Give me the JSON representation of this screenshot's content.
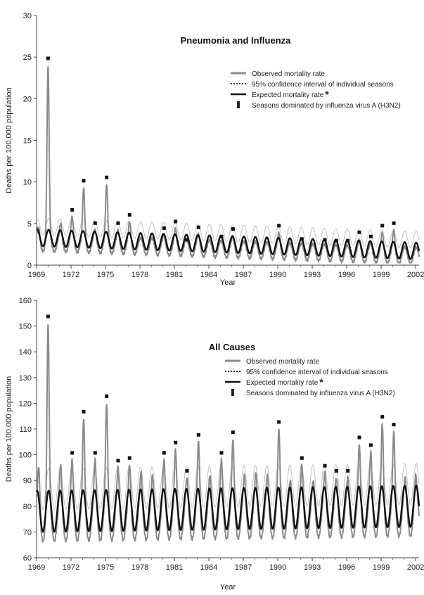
{
  "chart_data": [
    {
      "type": "line",
      "title": "Pneumonia and Influenza",
      "xlabel": "Year",
      "ylabel": "Deaths per 100,000 population",
      "ylim": [
        0,
        30
      ],
      "yticks": [
        0,
        5,
        10,
        15,
        20,
        25,
        30
      ],
      "xlim": [
        1969,
        2002.3
      ],
      "xticks": [
        1969,
        1972,
        1975,
        1978,
        1981,
        1984,
        1987,
        1990,
        1993,
        1996,
        1999,
        2002
      ],
      "grid": false,
      "legend_position": "top-right",
      "legend": [
        {
          "label": "Observed mortality rate",
          "style": "gray-line"
        },
        {
          "label": "95% confidence interval of individual seasons",
          "style": "dotted-line"
        },
        {
          "label": "Expected mortality rate",
          "style": "black-line",
          "marker": "*"
        },
        {
          "label": "Seasons dominated by influenza virus A (H3N2)",
          "style": "square-marker"
        }
      ],
      "expected": {
        "base": 3.3,
        "base_end": 1.7,
        "amplitude": 1.0
      },
      "observed_peaks": [
        {
          "year": 1969.2,
          "value": 4.5
        },
        {
          "year": 1970.0,
          "value": 24.0
        },
        {
          "year": 1971.1,
          "value": 5.0
        },
        {
          "year": 1972.1,
          "value": 5.8
        },
        {
          "year": 1973.1,
          "value": 9.3
        },
        {
          "year": 1974.1,
          "value": 4.2
        },
        {
          "year": 1975.1,
          "value": 9.7
        },
        {
          "year": 1976.1,
          "value": 4.2
        },
        {
          "year": 1977.1,
          "value": 5.2
        },
        {
          "year": 1978.1,
          "value": 2.9
        },
        {
          "year": 1979.1,
          "value": 2.6
        },
        {
          "year": 1980.1,
          "value": 3.6
        },
        {
          "year": 1981.1,
          "value": 4.4
        },
        {
          "year": 1982.1,
          "value": 2.2
        },
        {
          "year": 1983.1,
          "value": 3.7
        },
        {
          "year": 1984.1,
          "value": 2.2
        },
        {
          "year": 1985.1,
          "value": 2.6
        },
        {
          "year": 1986.1,
          "value": 3.5
        },
        {
          "year": 1987.1,
          "value": 1.9
        },
        {
          "year": 1988.1,
          "value": 1.7
        },
        {
          "year": 1989.1,
          "value": 1.9
        },
        {
          "year": 1990.1,
          "value": 3.9
        },
        {
          "year": 1991.1,
          "value": 1.8
        },
        {
          "year": 1992.1,
          "value": 2.3
        },
        {
          "year": 1993.1,
          "value": 1.8
        },
        {
          "year": 1994.1,
          "value": 2.2
        },
        {
          "year": 1995.1,
          "value": 2.1
        },
        {
          "year": 1996.1,
          "value": 2.1
        },
        {
          "year": 1997.1,
          "value": 3.1
        },
        {
          "year": 1998.1,
          "value": 2.6
        },
        {
          "year": 1999.1,
          "value": 3.9
        },
        {
          "year": 2000.1,
          "value": 4.2
        },
        {
          "year": 2001.1,
          "value": 1.9
        },
        {
          "year": 2002.0,
          "value": 1.9
        }
      ],
      "h3n2_seasons": [
        1970,
        1972,
        1973,
        1974,
        1975,
        1976,
        1977,
        1980,
        1981,
        1982,
        1983,
        1985,
        1986,
        1990,
        1992,
        1994,
        1995,
        1996,
        1997,
        1998,
        1999,
        2000
      ]
    },
    {
      "type": "line",
      "title": "All Causes",
      "xlabel": "Year",
      "ylabel": "Deaths per 100,000 population",
      "ylim": [
        60,
        160
      ],
      "yticks": [
        60,
        70,
        80,
        90,
        100,
        110,
        120,
        130,
        140,
        150,
        160
      ],
      "xlim": [
        1969,
        2002.3
      ],
      "xticks": [
        1969,
        1972,
        1975,
        1978,
        1981,
        1984,
        1987,
        1990,
        1993,
        1996,
        1999,
        2002
      ],
      "grid": false,
      "legend_position": "top-right",
      "legend": [
        {
          "label": "Observed mortality rate",
          "style": "gray-line"
        },
        {
          "label": "95% confidence interval of individual seasons",
          "style": "dotted-line"
        },
        {
          "label": "Expected mortality rate",
          "style": "black-line",
          "marker": "*"
        },
        {
          "label": "Seasons dominated by influenza virus A (H3N2)",
          "style": "square-marker"
        }
      ],
      "expected": {
        "base": 78,
        "base_end": 80,
        "amplitude": 8
      },
      "observed_peaks": [
        {
          "year": 1969.2,
          "value": 95
        },
        {
          "year": 1970.0,
          "value": 151
        },
        {
          "year": 1971.1,
          "value": 96
        },
        {
          "year": 1972.1,
          "value": 98
        },
        {
          "year": 1973.1,
          "value": 114
        },
        {
          "year": 1974.1,
          "value": 98
        },
        {
          "year": 1975.1,
          "value": 120
        },
        {
          "year": 1976.1,
          "value": 95
        },
        {
          "year": 1977.1,
          "value": 96
        },
        {
          "year": 1978.1,
          "value": 93
        },
        {
          "year": 1979.1,
          "value": 92
        },
        {
          "year": 1980.1,
          "value": 98
        },
        {
          "year": 1981.1,
          "value": 102
        },
        {
          "year": 1982.1,
          "value": 91
        },
        {
          "year": 1983.1,
          "value": 105
        },
        {
          "year": 1984.1,
          "value": 92
        },
        {
          "year": 1985.1,
          "value": 98
        },
        {
          "year": 1986.1,
          "value": 106
        },
        {
          "year": 1987.1,
          "value": 92
        },
        {
          "year": 1988.1,
          "value": 93
        },
        {
          "year": 1989.1,
          "value": 92
        },
        {
          "year": 1990.1,
          "value": 110
        },
        {
          "year": 1991.1,
          "value": 90
        },
        {
          "year": 1992.1,
          "value": 96
        },
        {
          "year": 1993.1,
          "value": 90
        },
        {
          "year": 1994.1,
          "value": 93
        },
        {
          "year": 1995.1,
          "value": 91
        },
        {
          "year": 1996.1,
          "value": 91
        },
        {
          "year": 1997.1,
          "value": 104
        },
        {
          "year": 1998.1,
          "value": 101
        },
        {
          "year": 1999.1,
          "value": 112
        },
        {
          "year": 2000.1,
          "value": 109
        },
        {
          "year": 2001.1,
          "value": 91
        },
        {
          "year": 2002.0,
          "value": 92
        }
      ],
      "h3n2_seasons": [
        1970,
        1972,
        1973,
        1974,
        1975,
        1976,
        1977,
        1980,
        1981,
        1982,
        1983,
        1985,
        1986,
        1990,
        1992,
        1994,
        1995,
        1996,
        1997,
        1998,
        1999,
        2000
      ]
    }
  ]
}
